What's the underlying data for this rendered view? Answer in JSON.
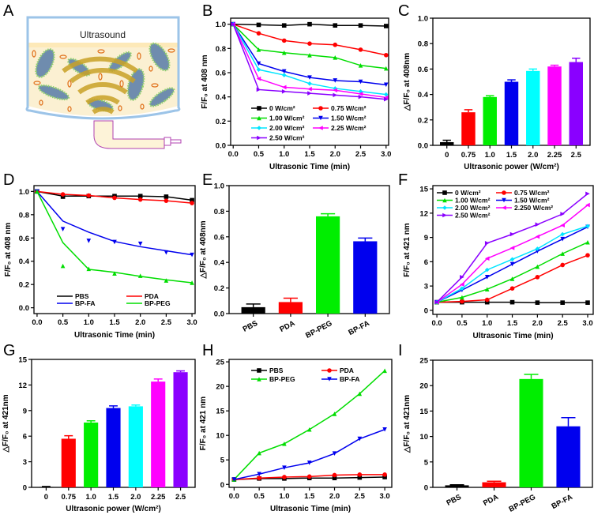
{
  "panels": {
    "A": "A",
    "B": "B",
    "C": "C",
    "D": "D",
    "E": "E",
    "F": "F",
    "G": "G",
    "H": "H",
    "I": "I"
  },
  "illustration": {
    "label": "Ultrasound",
    "colors": {
      "vessel": "#9cc4e8",
      "liquid": "#fbf0d2",
      "waves": "#c9a227",
      "particles": "#e0701a",
      "tube": "#b040b0"
    }
  },
  "chart_data": [
    {
      "id": "B",
      "type": "line",
      "x": [
        0,
        0.5,
        1.0,
        1.5,
        2.0,
        2.5,
        3.0
      ],
      "xticks": [
        "0.0",
        "0.5",
        "1.0",
        "1.5",
        "2.0",
        "2.5",
        "3.0"
      ],
      "xlim": [
        -0.05,
        3.05
      ],
      "ylim": [
        0,
        1.05
      ],
      "yticks": [
        0,
        0.2,
        0.4,
        0.6,
        0.8,
        1.0
      ],
      "ytick_labels": [
        "0.0",
        "0.2",
        "0.4",
        "0.6",
        "0.8",
        "1.0"
      ],
      "xlabel": "Ultrasonic Time (min)",
      "ylabel": "F/F₀ at 408 nm",
      "legend": "bottom-center",
      "series": [
        {
          "name": "0 W/cm²",
          "color": "#000000",
          "marker": "square",
          "values": [
            1,
            0.995,
            0.99,
            1.0,
            0.99,
            0.99,
            0.985
          ]
        },
        {
          "name": "0.75 W/cm²",
          "color": "#ff0000",
          "marker": "circle",
          "values": [
            1,
            0.925,
            0.865,
            0.84,
            0.83,
            0.79,
            0.745
          ]
        },
        {
          "name": "1.00 W/cm²",
          "color": "#00dd00",
          "marker": "tri-up",
          "values": [
            1,
            0.79,
            0.765,
            0.745,
            0.725,
            0.66,
            0.635
          ]
        },
        {
          "name": "1.50 W/cm²",
          "color": "#0000ee",
          "marker": "tri-down",
          "values": [
            1,
            0.675,
            0.61,
            0.56,
            0.535,
            0.525,
            0.5
          ]
        },
        {
          "name": "2.00 W/cm²",
          "color": "#00e5ff",
          "marker": "diamond",
          "values": [
            1,
            0.625,
            0.58,
            0.51,
            0.47,
            0.445,
            0.42
          ]
        },
        {
          "name": "2.25 W/cm²",
          "color": "#ff00ff",
          "marker": "tri-left",
          "values": [
            1,
            0.55,
            0.48,
            0.465,
            0.455,
            0.425,
            0.395
          ]
        },
        {
          "name": "2.50 W/cm²",
          "color": "#8a00ff",
          "marker": "tri-right",
          "values": [
            1,
            0.46,
            0.445,
            0.43,
            0.415,
            0.4,
            0.38
          ]
        }
      ]
    },
    {
      "id": "C",
      "type": "bar",
      "categories": [
        "0",
        "0.75",
        "1.0",
        "1.5",
        "2.0",
        "2.25",
        "2.5"
      ],
      "values": [
        0.025,
        0.26,
        0.38,
        0.5,
        0.585,
        0.62,
        0.655
      ],
      "errors": [
        0.015,
        0.02,
        0.01,
        0.015,
        0.015,
        0.01,
        0.03
      ],
      "colors": [
        "#000000",
        "#ff0000",
        "#00ee00",
        "#0000ee",
        "#00ffff",
        "#ff00ff",
        "#8a00ff"
      ],
      "ylim": [
        0,
        1.0
      ],
      "yticks": [
        0,
        0.2,
        0.4,
        0.6,
        0.8,
        1.0
      ],
      "ytick_labels": [
        "0.0",
        "0.2",
        "0.4",
        "0.6",
        "0.8",
        "1.0"
      ],
      "xlabel": "Ultrasonic power (W/cm²)",
      "ylabel": "△F/F₀ at 408nm",
      "rotate_labels": false
    },
    {
      "id": "D",
      "type": "line-fit",
      "x": [
        0,
        0.5,
        1.0,
        1.5,
        2.0,
        2.5,
        3.0
      ],
      "xticks": [
        "0.0",
        "0.5",
        "1.0",
        "1.5",
        "2.0",
        "2.5",
        "3.0"
      ],
      "xlim": [
        -0.06,
        3.06
      ],
      "ylim": [
        -0.05,
        1.05
      ],
      "yticks": [
        0,
        0.2,
        0.4,
        0.6,
        0.8,
        1.0
      ],
      "ytick_labels": [
        "0.0",
        "0.2",
        "0.4",
        "0.6",
        "0.8",
        "1.0"
      ],
      "xlabel": "Ultrasonic Time (min)",
      "ylabel": "F/F₀ at 408 nm",
      "legend": "bottom-center",
      "series": [
        {
          "name": "PBS",
          "color": "#000000",
          "marker": "square",
          "values": [
            1,
            0.96,
            0.96,
            0.96,
            0.96,
            0.955,
            0.925
          ],
          "points": [
            1,
            0.955,
            0.96,
            0.96,
            0.96,
            0.955,
            0.925
          ]
        },
        {
          "name": "PDA",
          "color": "#ff0000",
          "marker": "circle",
          "values": [
            1,
            0.975,
            0.965,
            0.945,
            0.93,
            0.92,
            0.9
          ],
          "points": [
            1,
            0.975,
            0.965,
            0.945,
            0.93,
            0.92,
            0.9
          ]
        },
        {
          "name": "BP-FA",
          "color": "#0000ee",
          "marker": "tri-down",
          "values": [
            1,
            0.745,
            0.65,
            0.57,
            0.525,
            0.49,
            0.455
          ],
          "points": [
            1,
            0.675,
            0.575,
            0.565,
            0.55,
            0.475,
            0.455
          ]
        },
        {
          "name": "BP-PEG",
          "color": "#00dd00",
          "marker": "tri-up",
          "values": [
            1,
            0.56,
            0.33,
            0.305,
            0.27,
            0.24,
            0.215
          ],
          "points": [
            1,
            0.36,
            0.335,
            0.295,
            0.275,
            0.235,
            0.215
          ]
        }
      ]
    },
    {
      "id": "E",
      "type": "bar",
      "categories": [
        "PBS",
        "PDA",
        "BP-PEG",
        "BP-FA"
      ],
      "values": [
        0.05,
        0.09,
        0.76,
        0.565
      ],
      "errors": [
        0.025,
        0.03,
        0.02,
        0.025
      ],
      "colors": [
        "#000000",
        "#ff0000",
        "#00ee00",
        "#0000ee"
      ],
      "ylim": [
        0,
        1.0
      ],
      "yticks": [
        0,
        0.2,
        0.4,
        0.6,
        0.8,
        1.0
      ],
      "ytick_labels": [
        "0.0",
        "0.2",
        "0.4",
        "0.6",
        "0.8",
        "1.0"
      ],
      "xlabel": "",
      "ylabel": "△F/F₀ at 408nm",
      "rotate_labels": true
    },
    {
      "id": "F",
      "type": "line",
      "x": [
        0,
        0.5,
        1.0,
        1.5,
        2.0,
        2.5,
        3.0
      ],
      "xticks": [
        "0.0",
        "0.5",
        "1.0",
        "1.5",
        "2.0",
        "2.5",
        "3.0"
      ],
      "xlim": [
        -0.08,
        3.11
      ],
      "ylim": [
        -0.5,
        15.4
      ],
      "yticks": [
        0,
        3,
        6,
        9,
        12,
        15
      ],
      "ytick_labels": [
        "0",
        "3",
        "6",
        "9",
        "12",
        "15"
      ],
      "xlabel": "Ultrasonic Time (min)",
      "ylabel": "F/F₀ at 421 nm",
      "legend": "top-left",
      "series": [
        {
          "name": "0 W/cm²",
          "color": "#000000",
          "marker": "square",
          "values": [
            1,
            1,
            1,
            1,
            0.95,
            0.95,
            0.95
          ]
        },
        {
          "name": "0.75 W/cm²",
          "color": "#ff0000",
          "marker": "circle",
          "values": [
            1,
            1.1,
            1.3,
            2.7,
            4.1,
            5.6,
            6.8
          ]
        },
        {
          "name": "1.00 W/cm²",
          "color": "#00dd00",
          "marker": "tri-up",
          "values": [
            1,
            1.6,
            2.6,
            3.9,
            5.4,
            7.0,
            8.4
          ]
        },
        {
          "name": "1.50 W/cm²",
          "color": "#0000ee",
          "marker": "tri-down",
          "values": [
            1,
            2.5,
            4.1,
            5.7,
            7.3,
            8.8,
            10.3
          ]
        },
        {
          "name": "2.00 W/cm²",
          "color": "#00e5ff",
          "marker": "diamond",
          "values": [
            1,
            2.7,
            5.0,
            6.3,
            7.6,
            9.4,
            10.4
          ]
        },
        {
          "name": "2.250 W/cm²",
          "color": "#ff00ff",
          "marker": "tri-left",
          "values": [
            1,
            3.2,
            6.4,
            7.7,
            9.1,
            10.5,
            13.0
          ]
        },
        {
          "name": "2.50 W/cm²",
          "color": "#8a00ff",
          "marker": "tri-right",
          "values": [
            1,
            4.1,
            8.3,
            9.4,
            10.6,
            11.9,
            14.4
          ]
        }
      ]
    },
    {
      "id": "G",
      "type": "bar",
      "categories": [
        "0",
        "0.75",
        "1.0",
        "1.5",
        "2.0",
        "2.25",
        "2.5"
      ],
      "values": [
        0.05,
        5.7,
        7.6,
        9.3,
        9.5,
        12.4,
        13.5
      ],
      "errors": [
        0.05,
        0.35,
        0.2,
        0.25,
        0.15,
        0.3,
        0.15
      ],
      "colors": [
        "#000000",
        "#ff0000",
        "#00ee00",
        "#0000ee",
        "#00ffff",
        "#ff00ff",
        "#8a00ff"
      ],
      "ylim": [
        0,
        15
      ],
      "yticks": [
        0,
        3,
        6,
        9,
        12,
        15
      ],
      "ytick_labels": [
        "0",
        "3",
        "6",
        "9",
        "12",
        "15"
      ],
      "xlabel": "Ultrasonic power (W/cm²)",
      "ylabel": "△F/F₀ at 421nm",
      "rotate_labels": false
    },
    {
      "id": "H",
      "type": "line",
      "x": [
        0,
        0.5,
        1.0,
        1.5,
        2.0,
        2.5,
        3.0
      ],
      "xticks": [
        "0.0",
        "0.5",
        "1.0",
        "1.5",
        "2.0",
        "2.5",
        "3.0"
      ],
      "xlim": [
        -0.1,
        3.14
      ],
      "ylim": [
        -0.6,
        25.5
      ],
      "yticks": [
        0,
        5,
        10,
        15,
        20,
        25
      ],
      "ytick_labels": [
        "0",
        "5",
        "10",
        "15",
        "20",
        "25"
      ],
      "xlabel": "Ultrasonic Time (min)",
      "ylabel": "F/F₀ at 421 nm",
      "legend": "top-left",
      "series": [
        {
          "name": "PBS",
          "color": "#000000",
          "marker": "square",
          "values": [
            1,
            1.2,
            1.2,
            1.3,
            1.3,
            1.4,
            1.5
          ]
        },
        {
          "name": "PDA",
          "color": "#ff0000",
          "marker": "circle",
          "values": [
            1,
            1.3,
            1.5,
            1.6,
            1.9,
            2.0,
            2.0
          ]
        },
        {
          "name": "BP-PEG",
          "color": "#00dd00",
          "marker": "tri-up",
          "values": [
            1,
            6.4,
            8.3,
            11.2,
            14.4,
            18.5,
            23.2
          ]
        },
        {
          "name": "BP-FA",
          "color": "#0000ee",
          "marker": "tri-down",
          "values": [
            1,
            2.1,
            3.4,
            4.4,
            6.3,
            9.3,
            11.2
          ]
        }
      ]
    },
    {
      "id": "I",
      "type": "bar",
      "categories": [
        "PBS",
        "PDA",
        "BP-PEG",
        "BP-FA"
      ],
      "values": [
        0.4,
        1.0,
        21.3,
        12.0
      ],
      "errors": [
        0.1,
        0.2,
        0.9,
        1.7
      ],
      "colors": [
        "#000000",
        "#ff0000",
        "#00ee00",
        "#0000ee"
      ],
      "ylim": [
        0,
        25
      ],
      "yticks": [
        0,
        5,
        10,
        15,
        20,
        25
      ],
      "ytick_labels": [
        "0",
        "5",
        "10",
        "15",
        "20",
        "25"
      ],
      "xlabel": "",
      "ylabel": "△F/F₀ at 421nm",
      "rotate_labels": true
    }
  ]
}
